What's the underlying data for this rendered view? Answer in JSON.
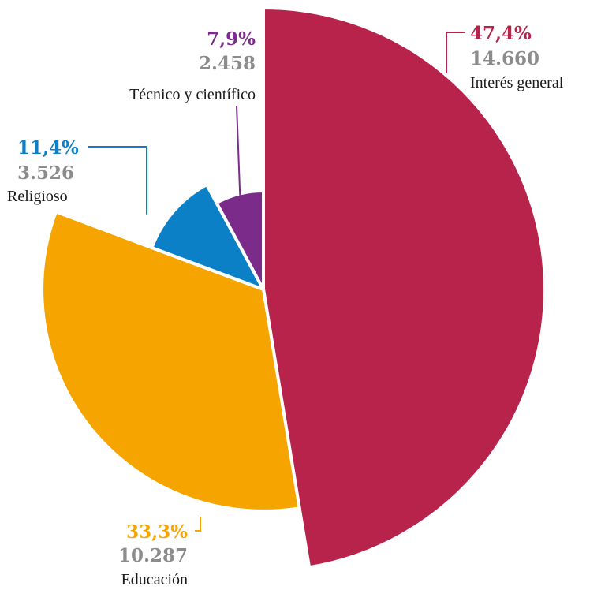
{
  "chart_data": {
    "type": "pie",
    "title": "",
    "slices": [
      {
        "key": "interes_general",
        "label": "Interés general",
        "percent": 47.4,
        "percent_label": "47,4%",
        "count": 14660,
        "count_label": "14.660",
        "color": "#b8234b"
      },
      {
        "key": "educacion",
        "label": "Educación",
        "percent": 33.3,
        "percent_label": "33,3%",
        "count": 10287,
        "count_label": "10.287",
        "color": "#f5a400"
      },
      {
        "key": "religioso",
        "label": "Religioso",
        "percent": 11.4,
        "percent_label": "11,4%",
        "count": 3526,
        "count_label": "3.526",
        "color": "#0b80c6"
      },
      {
        "key": "tecnico",
        "label": "Técnico y científico",
        "percent": 7.9,
        "percent_label": "7,9%",
        "count": 2458,
        "count_label": "2.458",
        "color": "#7b2c8b"
      }
    ],
    "note": "Radius of each sector scales with its share (polar-area style)."
  }
}
